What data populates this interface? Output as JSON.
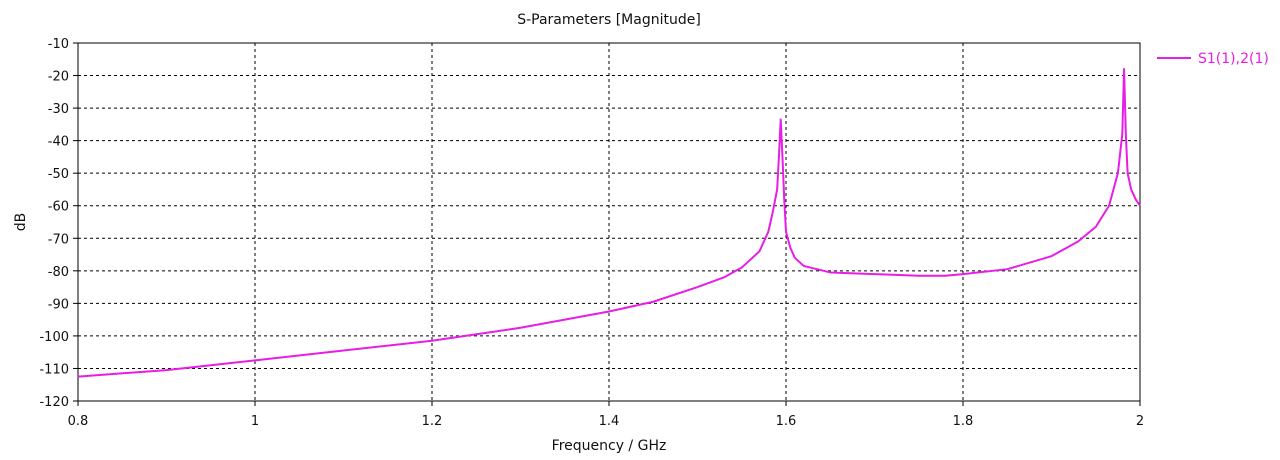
{
  "chart_data": {
    "type": "line",
    "title": "S-Parameters [Magnitude]",
    "xlabel": "Frequency / GHz",
    "ylabel": "dB",
    "xlim": [
      0.8,
      2.0
    ],
    "ylim": [
      -120,
      -10
    ],
    "x_ticks": [
      0.8,
      1.0,
      1.2,
      1.4,
      1.6,
      1.8,
      2.0
    ],
    "x_tick_labels": [
      "0.8",
      "1",
      "1.2",
      "1.4",
      "1.6",
      "1.8",
      "2"
    ],
    "y_ticks": [
      -10,
      -20,
      -30,
      -40,
      -50,
      -60,
      -70,
      -80,
      -90,
      -100,
      -110,
      -120
    ],
    "y_tick_labels": [
      "-10",
      "-20",
      "-30",
      "-40",
      "-50",
      "-60",
      "-70",
      "-80",
      "-90",
      "-100",
      "-110",
      "-120"
    ],
    "grid": true,
    "legend_position": "right",
    "series": [
      {
        "name": "S1(1),2(1)",
        "color": "#e61ee6",
        "x": [
          0.8,
          0.9,
          1.0,
          1.1,
          1.2,
          1.3,
          1.35,
          1.4,
          1.45,
          1.5,
          1.53,
          1.55,
          1.57,
          1.58,
          1.585,
          1.59,
          1.592,
          1.594,
          1.596,
          1.598,
          1.6,
          1.605,
          1.61,
          1.62,
          1.65,
          1.7,
          1.75,
          1.78,
          1.8,
          1.85,
          1.9,
          1.93,
          1.95,
          1.965,
          1.975,
          1.98,
          1.982,
          1.984,
          1.986,
          1.99,
          1.995,
          2.0
        ],
        "y": [
          -112.5,
          -110.5,
          -107.5,
          -104.5,
          -101.5,
          -97.5,
          -95,
          -92.5,
          -89.5,
          -85,
          -82,
          -79,
          -74,
          -68,
          -62,
          -55,
          -45,
          -33.5,
          -45,
          -58,
          -68,
          -73,
          -76,
          -78.5,
          -80.5,
          -81,
          -81.5,
          -81.5,
          -81,
          -79.5,
          -75.5,
          -71,
          -66.5,
          -60,
          -50,
          -38,
          -18,
          -38,
          -50,
          -55,
          -58,
          -60
        ]
      }
    ]
  }
}
